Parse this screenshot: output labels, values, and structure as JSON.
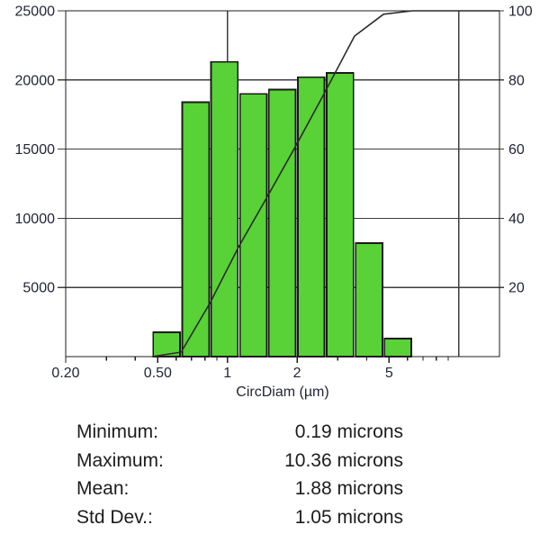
{
  "chart_data": {
    "type": "bar",
    "subtype": "log-histogram with cumulative percent line",
    "xlabel": "CircDiam (µm)",
    "x_scale": "log",
    "x_min": 0.2,
    "x_max": 15,
    "x_major_ticks": {
      "values": [
        0.2,
        0.5,
        1,
        2,
        5
      ],
      "labels": [
        "0.20",
        "0.50",
        "1",
        "2",
        "5"
      ]
    },
    "x_minor_ticks": [
      0.3,
      0.4,
      0.6,
      0.7,
      0.8,
      0.9,
      3,
      4,
      6,
      7,
      8,
      9
    ],
    "x_gridlines": [
      1,
      10
    ],
    "left_axis": {
      "min": 0,
      "max": 25000,
      "tick_values": [
        5000,
        10000,
        15000,
        20000,
        25000
      ],
      "tick_labels": [
        "5000",
        "10000",
        "15000",
        "20000",
        "25000"
      ]
    },
    "right_axis": {
      "min": 0,
      "max": 100,
      "tick_values": [
        20,
        40,
        60,
        80,
        100
      ],
      "tick_labels": [
        "20",
        "40",
        "60",
        "80",
        "100"
      ]
    },
    "histogram": {
      "bin_edges_um": [
        0.473,
        0.631,
        0.841,
        1.122,
        1.496,
        1.994,
        2.659,
        3.546,
        4.729,
        6.305
      ],
      "counts": [
        1750,
        18400,
        21300,
        19000,
        19300,
        20200,
        20500,
        8200,
        1300
      ]
    },
    "cumulative_line": {
      "x_um": [
        0.473,
        0.631,
        0.841,
        1.122,
        1.496,
        1.994,
        2.659,
        3.546,
        4.729,
        6.305,
        15
      ],
      "percent": [
        0,
        1.3,
        15.5,
        31.9,
        46.5,
        61.4,
        76.9,
        92.7,
        99,
        100,
        100
      ]
    },
    "legend": "none",
    "grid": "on",
    "colors": {
      "bar_fill": "#58d236",
      "bar_stroke": "#1a1a1a",
      "line": "#2b2b2b",
      "grid": "#3d3d3d",
      "border": "#1e1e1e",
      "axis_text": "#232537"
    }
  },
  "stats": {
    "rows": [
      {
        "label": "Minimum:",
        "value": "0.19 microns"
      },
      {
        "label": "Maximum:",
        "value": "10.36 microns"
      },
      {
        "label": "Mean:",
        "value": "1.88 microns"
      },
      {
        "label": "Std Dev.:",
        "value": "1.05 microns"
      }
    ]
  }
}
